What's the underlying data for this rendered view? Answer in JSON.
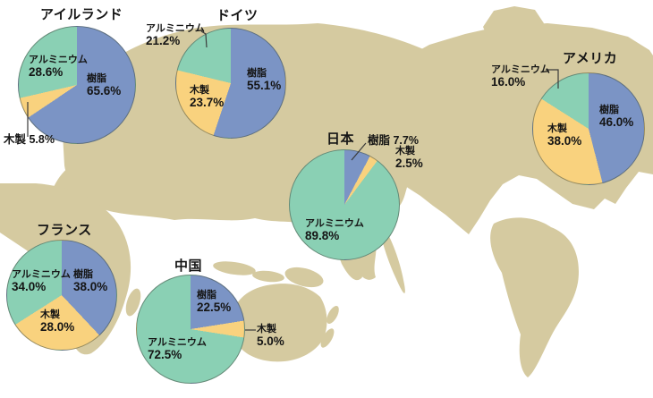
{
  "colors": {
    "resin": "#7b94c5",
    "wood": "#f9d27e",
    "aluminum": "#8ad0b4",
    "land": "#d5caa0",
    "ocean": "#ffffff",
    "text": "#151515",
    "leader_line": "#3a3a3a"
  },
  "legend": {
    "resin": "樹脂",
    "wood": "木製",
    "aluminum": "アルミニウム"
  },
  "chart_data": [
    {
      "type": "pie",
      "country": "アイルランド",
      "slices": [
        {
          "label": "樹脂",
          "value": 65.6,
          "color_key": "resin"
        },
        {
          "label": "木製",
          "value": 5.8,
          "color_key": "wood"
        },
        {
          "label": "アルミニウム",
          "value": 28.6,
          "color_key": "aluminum"
        }
      ]
    },
    {
      "type": "pie",
      "country": "ドイツ",
      "slices": [
        {
          "label": "樹脂",
          "value": 55.1,
          "color_key": "resin"
        },
        {
          "label": "木製",
          "value": 23.7,
          "color_key": "wood"
        },
        {
          "label": "アルミニウム",
          "value": 21.2,
          "color_key": "aluminum"
        }
      ]
    },
    {
      "type": "pie",
      "country": "アメリカ",
      "slices": [
        {
          "label": "樹脂",
          "value": 46.0,
          "color_key": "resin"
        },
        {
          "label": "木製",
          "value": 38.0,
          "color_key": "wood"
        },
        {
          "label": "アルミニウム",
          "value": 16.0,
          "color_key": "aluminum"
        }
      ]
    },
    {
      "type": "pie",
      "country": "日本",
      "slices": [
        {
          "label": "樹脂",
          "value": 7.7,
          "color_key": "resin"
        },
        {
          "label": "木製",
          "value": 2.5,
          "color_key": "wood"
        },
        {
          "label": "アルミニウム",
          "value": 89.8,
          "color_key": "aluminum"
        }
      ]
    },
    {
      "type": "pie",
      "country": "フランス",
      "slices": [
        {
          "label": "樹脂",
          "value": 38.0,
          "color_key": "resin"
        },
        {
          "label": "木製",
          "value": 28.0,
          "color_key": "wood"
        },
        {
          "label": "アルミニウム",
          "value": 34.0,
          "color_key": "aluminum"
        }
      ]
    },
    {
      "type": "pie",
      "country": "中国",
      "slices": [
        {
          "label": "樹脂",
          "value": 22.5,
          "color_key": "resin"
        },
        {
          "label": "木製",
          "value": 5.0,
          "color_key": "wood"
        },
        {
          "label": "アルミニウム",
          "value": 72.5,
          "color_key": "aluminum"
        }
      ]
    }
  ]
}
